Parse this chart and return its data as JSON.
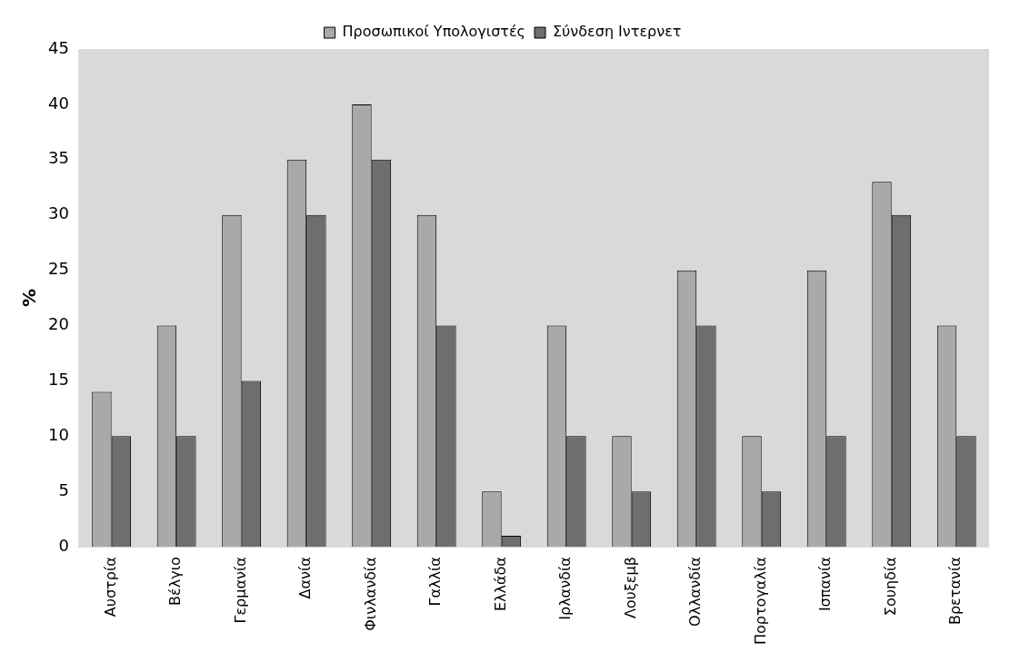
{
  "chart_data": {
    "type": "bar",
    "ylabel": "%",
    "categories": [
      "Αυστρία",
      "Βέλγιο",
      "Γερμανία",
      "Δανία",
      "Φινλανδία",
      "Γαλλία",
      "Ελλάδα",
      "Ιρλανδία",
      "Λουξεμβ",
      "Ολλανδία",
      "Πορτογαλία",
      "Ισπανία",
      "Σουηδία",
      "Βρετανία"
    ],
    "series": [
      {
        "name": "Προσωπικοί Υπολογιστές",
        "color": "#a9a9a9",
        "values": [
          14,
          20,
          30,
          35,
          40,
          30,
          5,
          20,
          10,
          25,
          10,
          25,
          33,
          20
        ]
      },
      {
        "name": "Σύνδεση Ιντερνετ",
        "color": "#6e6e6e",
        "values": [
          10,
          10,
          15,
          30,
          35,
          20,
          1,
          10,
          5,
          20,
          5,
          10,
          30,
          10
        ]
      }
    ],
    "ylim": [
      0,
      45
    ],
    "yticks": [
      0,
      5,
      10,
      15,
      20,
      25,
      30,
      35,
      40,
      45
    ],
    "grid": false,
    "legend": "top"
  }
}
